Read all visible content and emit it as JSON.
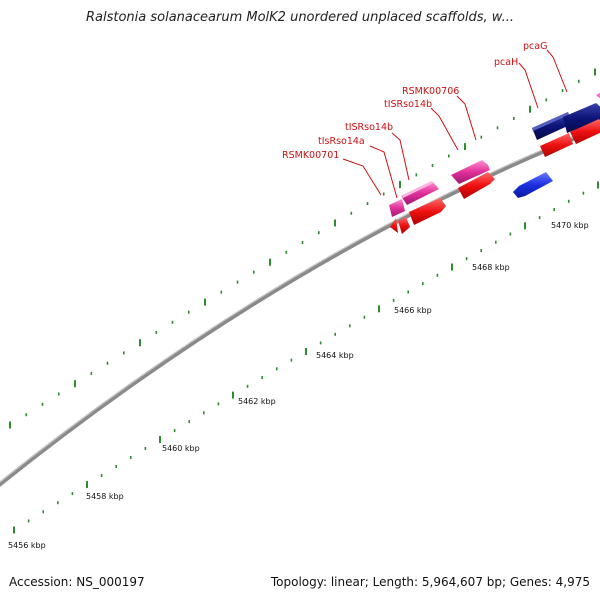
{
  "title": "Ralstonia solanacearum MolK2 unordered unplaced scaffolds, w...",
  "footer": {
    "accession": "Accession: NS_000197",
    "stats": "Topology: linear; Length: 5,964,607 bp; Genes: 4,975"
  },
  "scale_labels": [
    "5456 kbp",
    "5458 kbp",
    "5460 kbp",
    "5462 kbp",
    "5464 kbp",
    "5466 kbp",
    "5468 kbp",
    "5470 kbp"
  ],
  "gene_labels": [
    "RSMK00701",
    "tIsRso14a",
    "tISRso14b",
    "tISRso14b",
    "RSMK00706",
    "pcaH",
    "pcaG"
  ],
  "colors": {
    "backbone": "#8a8a8a",
    "tick": "#2e8b2e",
    "label": "#cc1111",
    "gene_red": "#ee1111",
    "gene_magenta": "#e0309a",
    "gene_navy": "#0c1478",
    "gene_blue": "#1a2ee0"
  }
}
